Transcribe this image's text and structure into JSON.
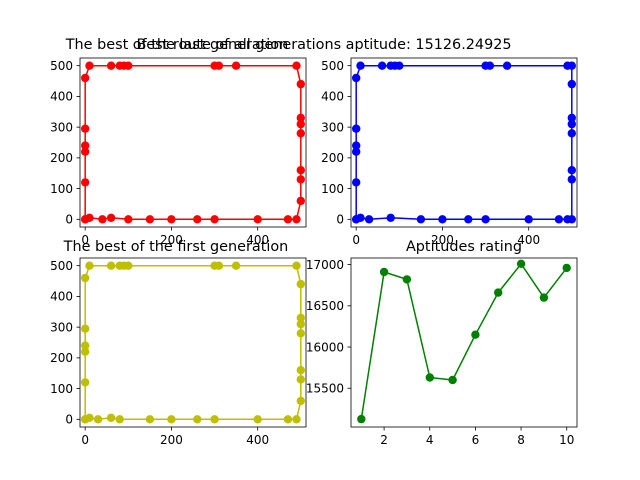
{
  "chart_data": [
    {
      "type": "line",
      "title": "The best of the last generation",
      "color": "#ff0000",
      "xlim": [
        -12,
        512
      ],
      "ylim": [
        -25,
        525
      ],
      "xticks": [
        0,
        200,
        400
      ],
      "yticks": [
        0,
        100,
        200,
        300,
        400,
        500
      ],
      "x": [
        0,
        10,
        40,
        60,
        100,
        150,
        200,
        260,
        300,
        400,
        470,
        490,
        500,
        500,
        500,
        500,
        500,
        500,
        500,
        490,
        350,
        300,
        310,
        100,
        90,
        80,
        60,
        10,
        0,
        0,
        0,
        0,
        0,
        0
      ],
      "y": [
        0,
        5,
        0,
        5,
        0,
        0,
        0,
        0,
        0,
        0,
        0,
        0,
        60,
        130,
        160,
        280,
        310,
        330,
        440,
        500,
        500,
        500,
        500,
        500,
        500,
        500,
        500,
        500,
        460,
        295,
        240,
        220,
        120,
        0
      ]
    },
    {
      "type": "line",
      "title": "Best route of all generations aptitude: 15126.24925",
      "color": "#0000ff",
      "xlim": [
        -12,
        512
      ],
      "ylim": [
        -25,
        525
      ],
      "xticks": [
        0,
        200,
        400
      ],
      "yticks": [
        0,
        100,
        200,
        300,
        400,
        500
      ],
      "x": [
        0,
        10,
        30,
        80,
        150,
        200,
        260,
        300,
        400,
        470,
        490,
        500,
        500,
        500,
        500,
        500,
        500,
        500,
        500,
        490,
        350,
        300,
        310,
        100,
        90,
        80,
        60,
        10,
        0,
        0,
        0,
        0,
        0,
        0
      ],
      "y": [
        0,
        5,
        0,
        5,
        0,
        0,
        0,
        0,
        0,
        0,
        0,
        0,
        130,
        160,
        280,
        310,
        330,
        440,
        500,
        500,
        500,
        500,
        500,
        500,
        500,
        500,
        500,
        500,
        460,
        295,
        240,
        220,
        120,
        0
      ]
    },
    {
      "type": "line",
      "title": "The best of the first generation",
      "color": "#bfbf00",
      "xlim": [
        -12,
        512
      ],
      "ylim": [
        -25,
        525
      ],
      "xticks": [
        0,
        200,
        400
      ],
      "yticks": [
        0,
        100,
        200,
        300,
        400,
        500
      ],
      "x": [
        0,
        10,
        30,
        60,
        80,
        150,
        200,
        260,
        300,
        400,
        470,
        490,
        500,
        500,
        500,
        500,
        500,
        500,
        500,
        490,
        350,
        300,
        310,
        100,
        90,
        80,
        60,
        10,
        0,
        0,
        0,
        0,
        0,
        0
      ],
      "y": [
        0,
        5,
        0,
        5,
        0,
        0,
        0,
        0,
        0,
        0,
        0,
        0,
        60,
        130,
        160,
        280,
        310,
        330,
        440,
        500,
        500,
        500,
        500,
        500,
        500,
        500,
        500,
        500,
        460,
        295,
        240,
        220,
        120,
        0
      ]
    },
    {
      "type": "line",
      "title": "Aptitudes rating",
      "color": "#008000",
      "xlim": [
        0.55,
        10.45
      ],
      "ylim": [
        15030,
        17080
      ],
      "xticks": [
        2,
        4,
        6,
        8,
        10
      ],
      "yticks": [
        15500,
        16000,
        16500,
        17000
      ],
      "x": [
        1,
        2,
        3,
        4,
        5,
        6,
        7,
        8,
        9,
        10
      ],
      "y": [
        15126,
        16910,
        16820,
        15630,
        15600,
        16150,
        16660,
        17010,
        16600,
        16960
      ]
    }
  ]
}
